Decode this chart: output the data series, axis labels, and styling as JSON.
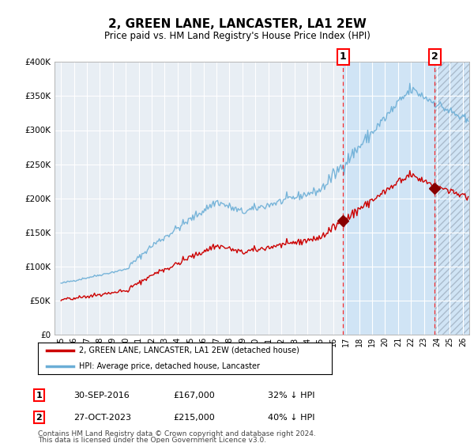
{
  "title": "2, GREEN LANE, LANCASTER, LA1 2EW",
  "subtitle": "Price paid vs. HM Land Registry's House Price Index (HPI)",
  "ylim": [
    0,
    400000
  ],
  "yticks": [
    0,
    50000,
    100000,
    150000,
    200000,
    250000,
    300000,
    350000,
    400000
  ],
  "ytick_labels": [
    "£0",
    "£50K",
    "£100K",
    "£150K",
    "£200K",
    "£250K",
    "£300K",
    "£350K",
    "£400K"
  ],
  "xlim_start": 1994.5,
  "xlim_end": 2026.5,
  "sale1_date": 2016.75,
  "sale1_price": 167000,
  "sale1_label": "30-SEP-2016",
  "sale1_pct": "32% ↓ HPI",
  "sale2_date": 2023.83,
  "sale2_price": 215000,
  "sale2_label": "27-OCT-2023",
  "sale2_pct": "40% ↓ HPI",
  "hpi_color": "#6baed6",
  "price_color": "#cc0000",
  "legend_label1": "2, GREEN LANE, LANCASTER, LA1 2EW (detached house)",
  "legend_label2": "HPI: Average price, detached house, Lancaster",
  "footnote1": "Contains HM Land Registry data © Crown copyright and database right 2024.",
  "footnote2": "This data is licensed under the Open Government Licence v3.0.",
  "background_color": "#ffffff",
  "plot_bg_color": "#e8eef4",
  "shade_color": "#d0e4f5",
  "grid_color": "#ffffff"
}
